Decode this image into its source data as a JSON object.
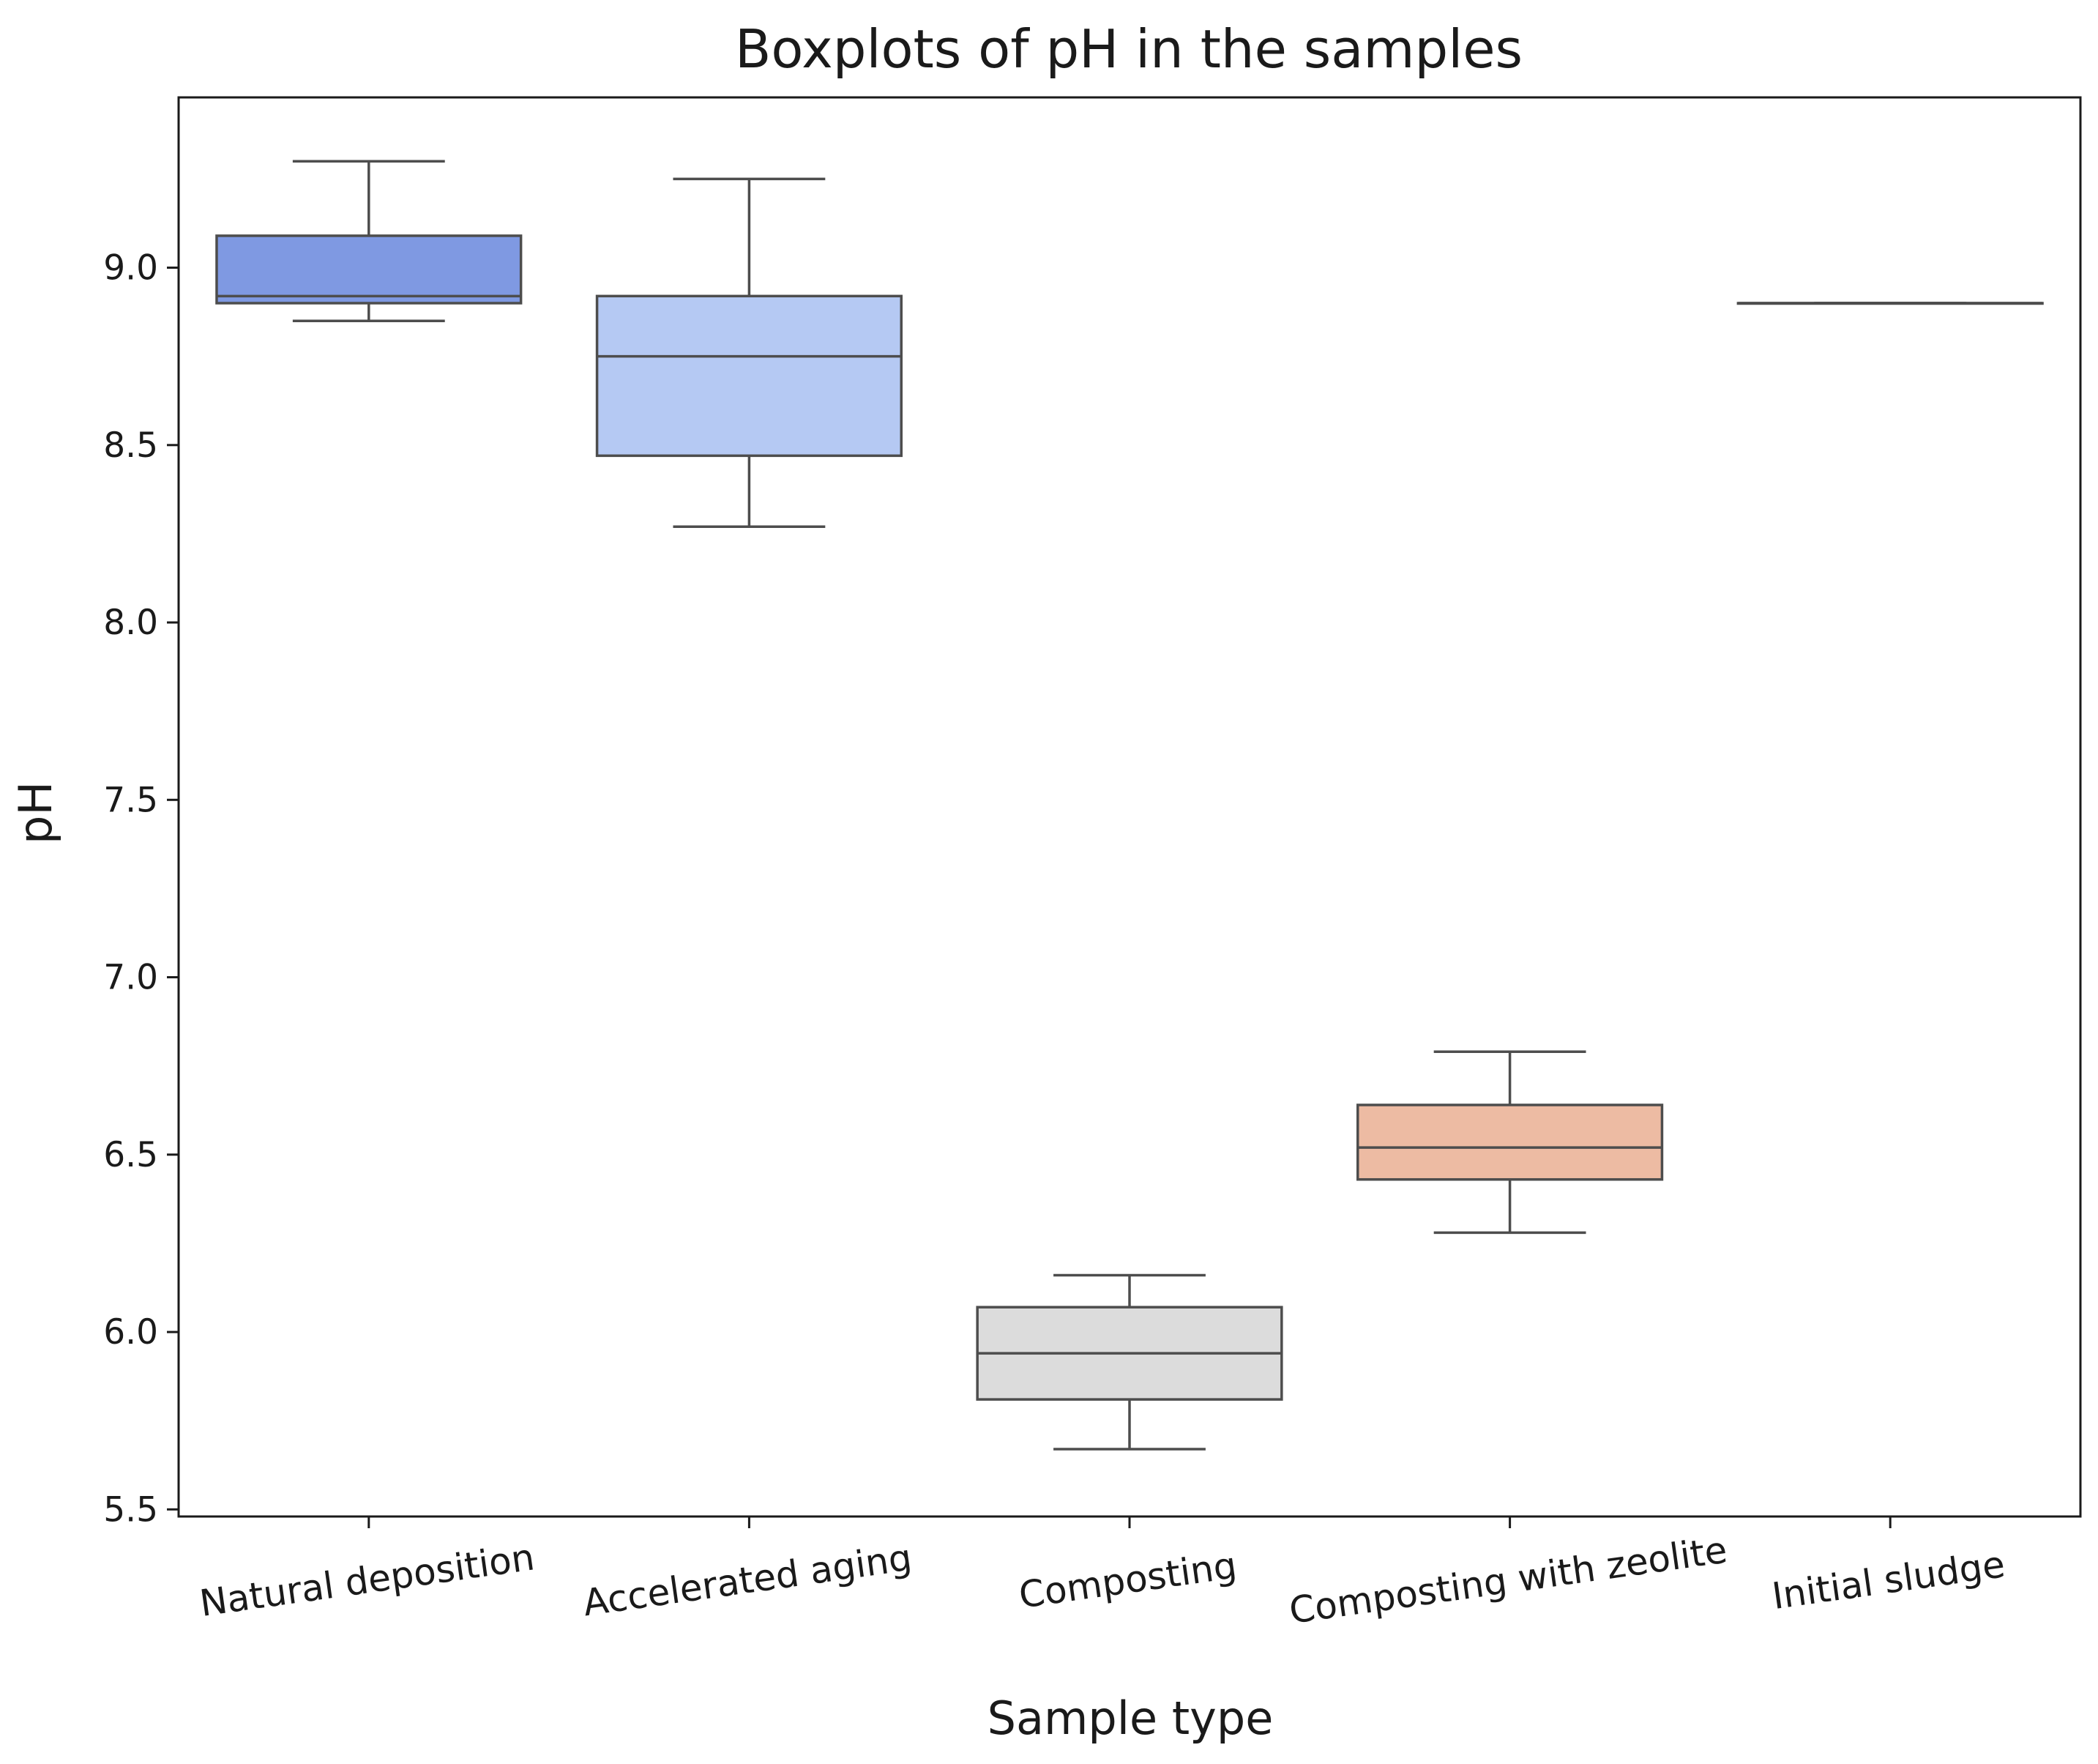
{
  "chart_data": {
    "type": "boxplot",
    "title": "Boxplots of pH in the samples",
    "xlabel": "Sample type",
    "ylabel": "pH",
    "ylim": [
      5.48,
      9.48
    ],
    "yticks": [
      "5.5",
      "6.0",
      "6.5",
      "7.0",
      "7.5",
      "8.0",
      "8.5",
      "9.0"
    ],
    "grid": false,
    "categories": [
      "Natural deposition",
      "Accelerated aging",
      "Composting",
      "Composting with zeolite",
      "Initial sludge"
    ],
    "boxes": [
      {
        "name": "Natural deposition",
        "min": 8.85,
        "q1": 8.9,
        "median": 8.92,
        "q3": 9.09,
        "max": 9.3,
        "color": "#7f99e2"
      },
      {
        "name": "Accelerated aging",
        "min": 8.27,
        "q1": 8.47,
        "median": 8.75,
        "q3": 8.92,
        "max": 9.25,
        "color": "#b5c9f3"
      },
      {
        "name": "Composting",
        "min": 5.67,
        "q1": 5.81,
        "median": 5.94,
        "q3": 6.07,
        "max": 6.16,
        "color": "#dcdcdc"
      },
      {
        "name": "Composting with zeolite",
        "min": 6.28,
        "q1": 6.43,
        "median": 6.52,
        "q3": 6.64,
        "max": 6.79,
        "color": "#edbba3"
      },
      {
        "name": "Initial sludge",
        "min": 8.9,
        "q1": 8.9,
        "median": 8.9,
        "q3": 8.9,
        "max": 8.9,
        "color": "#ee8c6c"
      }
    ]
  }
}
